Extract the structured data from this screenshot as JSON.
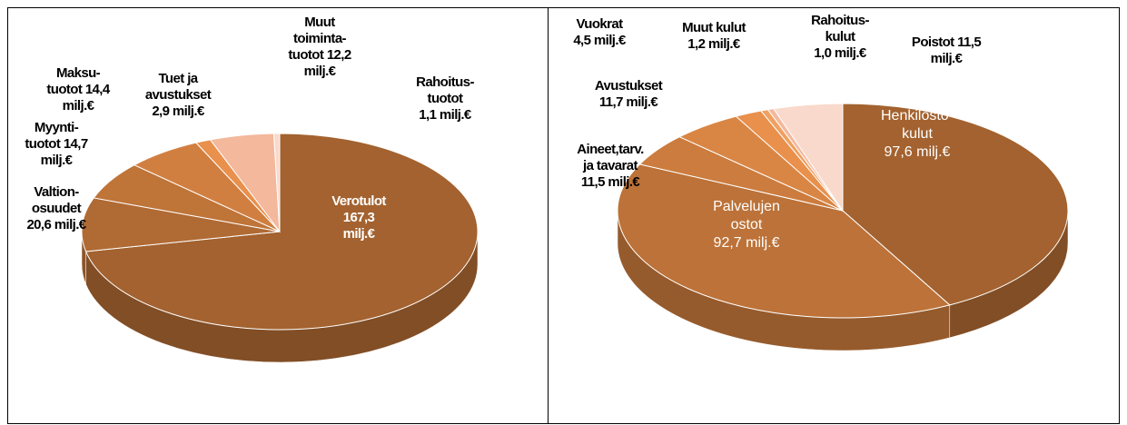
{
  "chart_data": [
    {
      "type": "pie",
      "labels": [
        "Verotulot\n167,3\nmilj.€",
        "Valtion-\nosuudet\n20,6 milj.€",
        "Myynti-\ntuotot 14,7\nmilj.€",
        "Maksu-\ntuotot 14,4\nmilj.€",
        "Tuet ja\navustukset\n2,9 milj.€",
        "Muut\ntoiminta-\ntuotot 12,2\nmilj.€",
        "Rahoitus-\ntuotot\n1,1 milj.€"
      ],
      "values": [
        167.3,
        20.6,
        14.7,
        14.4,
        2.9,
        12.2,
        1.1
      ],
      "colors": [
        "#a3622f",
        "#b06a34",
        "#bf7438",
        "#d17f40",
        "#e8904c",
        "#f4b89c",
        "#f9d9cb"
      ]
    },
    {
      "type": "pie",
      "labels": [
        "Henkilöstö-\nkulut\n97,6 milj.€",
        "Palvelujen\nostot\n92,7 milj.€",
        "Aineet,tarv.\nja tavarat\n11,5 milj.€",
        "Avustukset\n11,7 milj.€",
        "Vuokrat\n4,5 milj.€",
        "Muut kulut\n1,2 milj.€",
        "Rahoitus-\nkulut\n1,0 milj.€",
        "Poistot 11,5\nmilj.€"
      ],
      "values": [
        97.6,
        92.7,
        11.5,
        11.7,
        4.5,
        1.2,
        1.0,
        11.5
      ],
      "colors": [
        "#a3622f",
        "#bc7238",
        "#cc7c3e",
        "#d98645",
        "#e8904c",
        "#f0a060",
        "#f4b89c",
        "#f9d9cb"
      ]
    }
  ]
}
